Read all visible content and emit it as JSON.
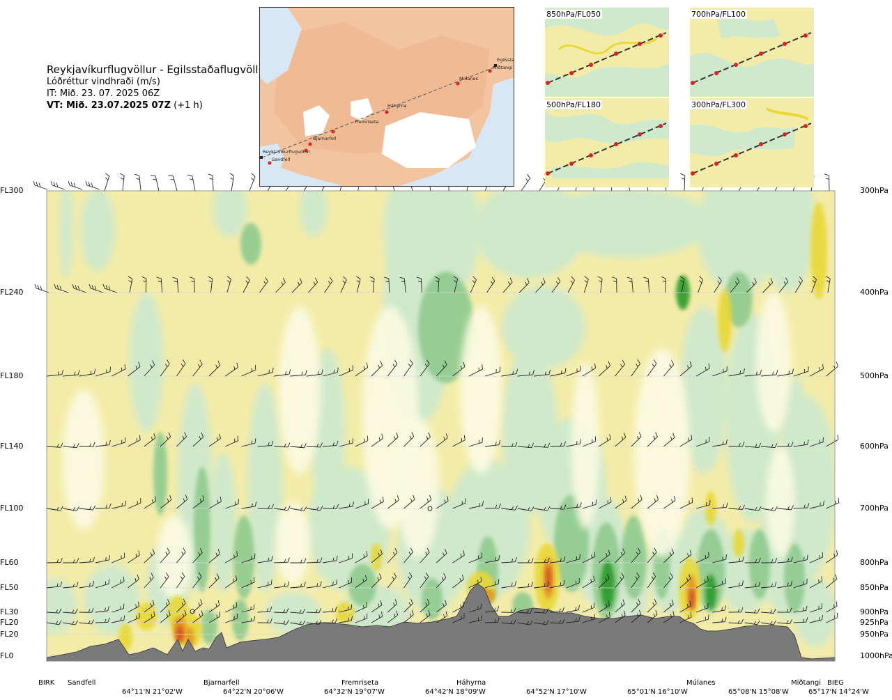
{
  "header": {
    "route": "Reykjavíkurflugvöllur - Egilsstaðaflugvöllur",
    "quantity": "Lóðréttur vindhraði (m/s)",
    "issue": "IT: Mið. 23. 07. 2025 06Z",
    "valid_bold": "VT: Mið. 23.07.2025 07Z",
    "valid_rest": " (+1 h)"
  },
  "map": {
    "places": [
      "Reykjavíkurflugvöllur",
      "Sandfell",
      "Bjarnarfell",
      "Fremriseta",
      "Háhyrna",
      "Múlanes",
      "Egilsstaðir",
      "Miðtangi"
    ]
  },
  "thumbnails": [
    "850hPa/FL050",
    "700hPa/FL100",
    "500hPa/FL180",
    "300hPa/FL300"
  ],
  "chart_data": {
    "type": "heatmap",
    "title": "Lóðréttur vindhraði (m/s)",
    "left_levels": [
      "FL300",
      "FL240",
      "FL180",
      "FL140",
      "FL100",
      "FL60",
      "FL50",
      "FL30",
      "FL20",
      "FL20",
      "FL0"
    ],
    "right_levels": [
      "300hPa",
      "400hPa",
      "500hPa",
      "600hPa",
      "700hPa",
      "800hPa",
      "850hPa",
      "900hPa",
      "925hPa",
      "950hPa",
      "1000hPa"
    ],
    "pressure_hpa": [
      300,
      400,
      500,
      600,
      700,
      800,
      850,
      900,
      925,
      950,
      1000
    ],
    "waypoints": [
      "BIRK",
      "Sandfell",
      "Bjarnarfell",
      "Fremriseta",
      "Háhyrna",
      "Múlanes",
      "Miðtangi",
      "BIEG"
    ],
    "coordinates": [
      "64°11'N 21°02'W",
      "64°22'N 20°06'W",
      "64°32'N 19°07'W",
      "64°42'N 18°09'W",
      "64°52'N 17°10'W",
      "65°01'N 16°10'W",
      "65°08'N 15°08'W",
      "65°17'N 14°24'W"
    ],
    "colors": {
      "strong_down": "#2a9a2a",
      "mod_down": "#8fca8f",
      "weak_down": "#cfe9cc",
      "near_zero": "#fbfbe3",
      "weak_up": "#f3eca9",
      "mod_up": "#e8d838",
      "strong_up": "#e39a22",
      "very_strong_up": "#d2502a",
      "terrain": "#7a7a7a"
    }
  }
}
